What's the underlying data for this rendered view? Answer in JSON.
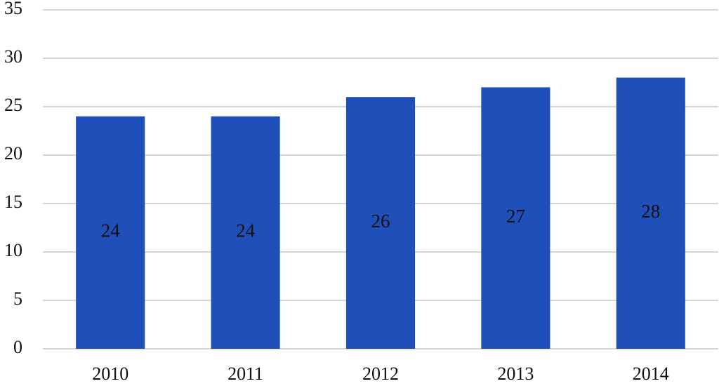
{
  "chart_data": {
    "type": "bar",
    "categories": [
      "2010",
      "2011",
      "2012",
      "2013",
      "2014"
    ],
    "values": [
      24,
      24,
      26,
      27,
      28
    ],
    "color": "#1f4fb8",
    "ylim": [
      0,
      35
    ],
    "yticks": [
      0,
      5,
      10,
      15,
      20,
      25,
      30,
      35
    ],
    "grid": true
  }
}
